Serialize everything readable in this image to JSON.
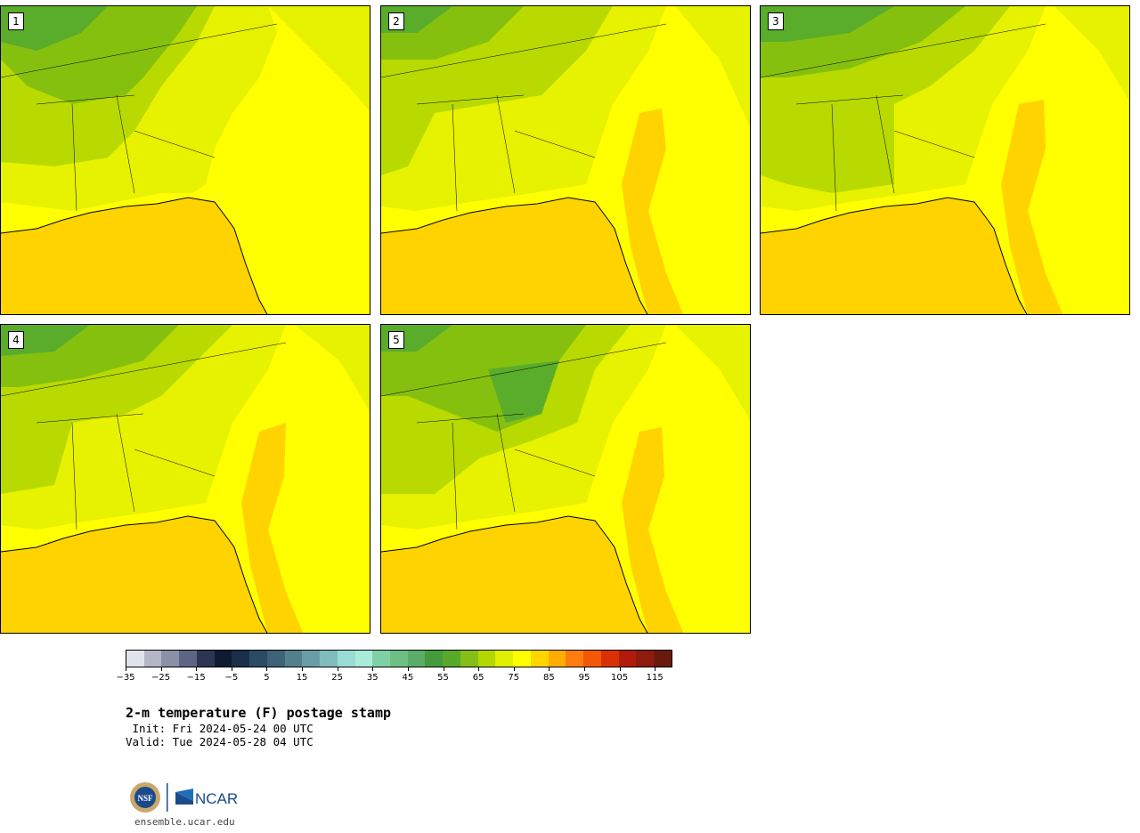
{
  "panels": [
    {
      "label": "1"
    },
    {
      "label": "2"
    },
    {
      "label": "3"
    },
    {
      "label": "4"
    },
    {
      "label": "5"
    }
  ],
  "colorbar": {
    "colors": [
      "#dfe3ea",
      "#b4b8c6",
      "#8a90a5",
      "#5d6584",
      "#2d3552",
      "#0f1a33",
      "#1b2e4a",
      "#2b4a63",
      "#3e6277",
      "#547f8c",
      "#6a9ea7",
      "#80bcbd",
      "#99dcd3",
      "#a8ecd9",
      "#7fd1a5",
      "#6dbf83",
      "#5aac68",
      "#449b3d",
      "#58a82a",
      "#85bf16",
      "#b3d800",
      "#e0f000",
      "#ffff00",
      "#ffd500",
      "#ffad00",
      "#ff7d10",
      "#f25808",
      "#db3005",
      "#b21a0c",
      "#8e1b0c",
      "#6a1a0d"
    ],
    "tick_labels": [
      "−35",
      "−25",
      "−15",
      "−5",
      "5",
      "15",
      "25",
      "35",
      "45",
      "55",
      "65",
      "75",
      "85",
      "95",
      "105",
      "115"
    ],
    "min": -35,
    "max": 120,
    "step": 5
  },
  "title": {
    "main": "2-m temperature (F) postage stamp",
    "init": " Init: Fri 2024-05-24 00 UTC",
    "valid": "Valid: Tue 2024-05-28 04 UTC"
  },
  "logo": {
    "nsf_text": "NSF",
    "ncar_text": "NCAR"
  },
  "site": "ensemble.ucar.edu"
}
